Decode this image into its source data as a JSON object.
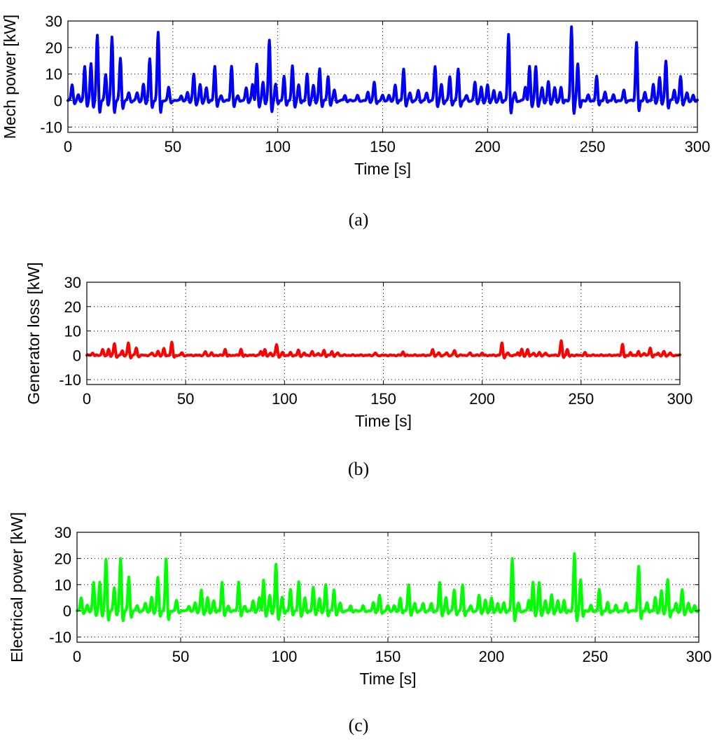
{
  "chart_data": [
    {
      "type": "line",
      "panel": "(a)",
      "title": "",
      "caption": "(a)",
      "xlabel": "Time [s]",
      "ylabel": "Mech power [kW]",
      "xlim": [
        0,
        300
      ],
      "ylim": [
        -12,
        30
      ],
      "xticks": [
        0,
        50,
        100,
        150,
        200,
        250,
        300
      ],
      "xtick_labels": [
        "0",
        "50",
        "100",
        "150",
        "200",
        "250",
        "300"
      ],
      "yticks": [
        -10,
        0,
        10,
        20,
        30
      ],
      "ytick_labels": [
        "-10",
        "0",
        "10",
        "20",
        "30"
      ],
      "grid": true,
      "color": "#0000ff",
      "series": [
        {
          "name": "Mech power",
          "peaks": [
            [
              2,
              6
            ],
            [
              5,
              2
            ],
            [
              8,
              13
            ],
            [
              11,
              14
            ],
            [
              14,
              25
            ],
            [
              18,
              10
            ],
            [
              21,
              24
            ],
            [
              25,
              16
            ],
            [
              29,
              3
            ],
            [
              33,
              3
            ],
            [
              36,
              6
            ],
            [
              39,
              16
            ],
            [
              43,
              26
            ],
            [
              48,
              5
            ],
            [
              54,
              2
            ],
            [
              57,
              3
            ],
            [
              60,
              10
            ],
            [
              63,
              6
            ],
            [
              66,
              5
            ],
            [
              70,
              13
            ],
            [
              73,
              2
            ],
            [
              78,
              13
            ],
            [
              81,
              2
            ],
            [
              85,
              5
            ],
            [
              88,
              6
            ],
            [
              90,
              14
            ],
            [
              93,
              7
            ],
            [
              96,
              23
            ],
            [
              99,
              6
            ],
            [
              103,
              9
            ],
            [
              107,
              13
            ],
            [
              110,
              6
            ],
            [
              114,
              10
            ],
            [
              117,
              6
            ],
            [
              120,
              12
            ],
            [
              124,
              9
            ],
            [
              127,
              4
            ],
            [
              132,
              2
            ],
            [
              138,
              2
            ],
            [
              143,
              3
            ],
            [
              146,
              7
            ],
            [
              150,
              2
            ],
            [
              153,
              2
            ],
            [
              156,
              6
            ],
            [
              160,
              12
            ],
            [
              163,
              3
            ],
            [
              167,
              4
            ],
            [
              171,
              3
            ],
            [
              175,
              13
            ],
            [
              178,
              6
            ],
            [
              182,
              9
            ],
            [
              186,
              12
            ],
            [
              190,
              2
            ],
            [
              194,
              7
            ],
            [
              197,
              5
            ],
            [
              200,
              6
            ],
            [
              203,
              4
            ],
            [
              206,
              3
            ],
            [
              210,
              25
            ],
            [
              213,
              3
            ],
            [
              218,
              5
            ],
            [
              220,
              13
            ],
            [
              223,
              13
            ],
            [
              226,
              5
            ],
            [
              229,
              7
            ],
            [
              232,
              5
            ],
            [
              235,
              5
            ],
            [
              240,
              28
            ],
            [
              243,
              14
            ],
            [
              248,
              2
            ],
            [
              252,
              9
            ],
            [
              256,
              3
            ],
            [
              260,
              2
            ],
            [
              265,
              4
            ],
            [
              271,
              22
            ],
            [
              275,
              3
            ],
            [
              279,
              6
            ],
            [
              282,
              9
            ],
            [
              285,
              15
            ],
            [
              289,
              4
            ],
            [
              292,
              9
            ],
            [
              295,
              3
            ],
            [
              298,
              2
            ]
          ]
        }
      ]
    },
    {
      "type": "line",
      "panel": "(b)",
      "title": "",
      "caption": "(b)",
      "xlabel": "Time [s]",
      "ylabel": "Generator loss [kW]",
      "xlim": [
        0,
        300
      ],
      "ylim": [
        -12,
        30
      ],
      "xticks": [
        0,
        50,
        100,
        150,
        200,
        250,
        300
      ],
      "xtick_labels": [
        "0",
        "50",
        "100",
        "150",
        "200",
        "250",
        "300"
      ],
      "yticks": [
        -10,
        0,
        10,
        20,
        30
      ],
      "ytick_labels": [
        "-10",
        "0",
        "10",
        "20",
        "30"
      ],
      "grid": true,
      "color": "#ff0000",
      "series": [
        {
          "name": "Generator loss",
          "peaks": [
            [
              3,
              1
            ],
            [
              8,
              2.5
            ],
            [
              11,
              2.5
            ],
            [
              14,
              5
            ],
            [
              18,
              2
            ],
            [
              21,
              5
            ],
            [
              25,
              3
            ],
            [
              33,
              1
            ],
            [
              36,
              1.5
            ],
            [
              39,
              3
            ],
            [
              43,
              5.5
            ],
            [
              48,
              1
            ],
            [
              60,
              1.5
            ],
            [
              63,
              1
            ],
            [
              70,
              2.5
            ],
            [
              78,
              2.5
            ],
            [
              88,
              1.5
            ],
            [
              90,
              2.5
            ],
            [
              93,
              1
            ],
            [
              96,
              4.5
            ],
            [
              99,
              1
            ],
            [
              103,
              1
            ],
            [
              107,
              2
            ],
            [
              110,
              1
            ],
            [
              114,
              1.5
            ],
            [
              117,
              1
            ],
            [
              120,
              2
            ],
            [
              124,
              1.5
            ],
            [
              127,
              1
            ],
            [
              146,
              1
            ],
            [
              160,
              1.5
            ],
            [
              175,
              2.5
            ],
            [
              178,
              1
            ],
            [
              182,
              1
            ],
            [
              186,
              2
            ],
            [
              194,
              1
            ],
            [
              200,
              1
            ],
            [
              210,
              5
            ],
            [
              213,
              1
            ],
            [
              218,
              1
            ],
            [
              220,
              2.5
            ],
            [
              223,
              2.5
            ],
            [
              226,
              1
            ],
            [
              229,
              1
            ],
            [
              232,
              1
            ],
            [
              240,
              6
            ],
            [
              243,
              2.5
            ],
            [
              252,
              1
            ],
            [
              271,
              4.5
            ],
            [
              275,
              1
            ],
            [
              279,
              1.5
            ],
            [
              282,
              1
            ],
            [
              285,
              3
            ],
            [
              289,
              1
            ],
            [
              292,
              1.5
            ],
            [
              295,
              1
            ]
          ]
        }
      ]
    },
    {
      "type": "line",
      "panel": "(c)",
      "title": "",
      "caption": "(c)",
      "xlabel": "Time [s]",
      "ylabel": "Electrical power [kW]",
      "xlim": [
        0,
        300
      ],
      "ylim": [
        -12,
        30
      ],
      "xticks": [
        0,
        50,
        100,
        150,
        200,
        250,
        300
      ],
      "xtick_labels": [
        "0",
        "50",
        "100",
        "150",
        "200",
        "250",
        "300"
      ],
      "yticks": [
        -10,
        0,
        10,
        20,
        30
      ],
      "ytick_labels": [
        "-10",
        "0",
        "10",
        "20",
        "30"
      ],
      "grid": true,
      "color": "#00ff00",
      "series": [
        {
          "name": "Electrical power",
          "peaks": [
            [
              2,
              5
            ],
            [
              5,
              2
            ],
            [
              8,
              11
            ],
            [
              11,
              11
            ],
            [
              14,
              20
            ],
            [
              18,
              9
            ],
            [
              21,
              20
            ],
            [
              25,
              13
            ],
            [
              29,
              2
            ],
            [
              33,
              3
            ],
            [
              36,
              5
            ],
            [
              39,
              13
            ],
            [
              43,
              20
            ],
            [
              48,
              4
            ],
            [
              54,
              2
            ],
            [
              57,
              3
            ],
            [
              60,
              8
            ],
            [
              63,
              5
            ],
            [
              66,
              4
            ],
            [
              70,
              11
            ],
            [
              73,
              2
            ],
            [
              78,
              11
            ],
            [
              81,
              2
            ],
            [
              85,
              4
            ],
            [
              88,
              5
            ],
            [
              90,
              12
            ],
            [
              93,
              6
            ],
            [
              96,
              18
            ],
            [
              99,
              5
            ],
            [
              103,
              8
            ],
            [
              107,
              11
            ],
            [
              110,
              5
            ],
            [
              114,
              9
            ],
            [
              117,
              5
            ],
            [
              120,
              10
            ],
            [
              124,
              8
            ],
            [
              127,
              3
            ],
            [
              132,
              2
            ],
            [
              138,
              2
            ],
            [
              143,
              3
            ],
            [
              146,
              6
            ],
            [
              150,
              2
            ],
            [
              153,
              2
            ],
            [
              156,
              5
            ],
            [
              160,
              10
            ],
            [
              163,
              3
            ],
            [
              167,
              3
            ],
            [
              171,
              3
            ],
            [
              175,
              11
            ],
            [
              178,
              5
            ],
            [
              182,
              8
            ],
            [
              186,
              10
            ],
            [
              190,
              2
            ],
            [
              194,
              6
            ],
            [
              197,
              4
            ],
            [
              200,
              5
            ],
            [
              203,
              3
            ],
            [
              206,
              3
            ],
            [
              210,
              20
            ],
            [
              213,
              3
            ],
            [
              218,
              4
            ],
            [
              220,
              11
            ],
            [
              223,
              11
            ],
            [
              226,
              4
            ],
            [
              229,
              6
            ],
            [
              232,
              4
            ],
            [
              235,
              4
            ],
            [
              240,
              22
            ],
            [
              243,
              12
            ],
            [
              248,
              2
            ],
            [
              252,
              8
            ],
            [
              256,
              3
            ],
            [
              260,
              2
            ],
            [
              265,
              3
            ],
            [
              271,
              17
            ],
            [
              275,
              3
            ],
            [
              279,
              5
            ],
            [
              282,
              8
            ],
            [
              285,
              12
            ],
            [
              289,
              3
            ],
            [
              292,
              8
            ],
            [
              295,
              3
            ],
            [
              298,
              2
            ]
          ]
        }
      ]
    }
  ]
}
